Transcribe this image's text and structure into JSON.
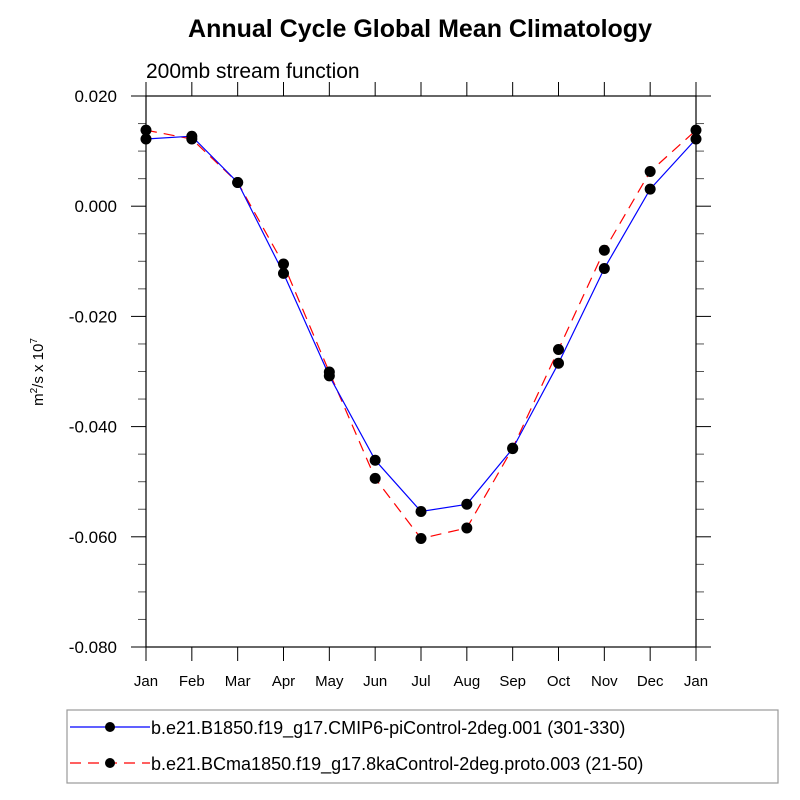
{
  "chart_data": {
    "type": "line",
    "title": "Annual Cycle Global Mean Climatology",
    "subtitle": "200mb stream function",
    "xlabel": "",
    "ylabel": {
      "base": "m",
      "sup1": "2",
      "mid": "/s x 10",
      "sup2": "7"
    },
    "x": [
      "Jan",
      "Feb",
      "Mar",
      "Apr",
      "May",
      "Jun",
      "Jul",
      "Aug",
      "Sep",
      "Oct",
      "Nov",
      "Dec",
      "Jan"
    ],
    "ylim": [
      -0.08,
      0.02
    ],
    "yticks": [
      0.02,
      0.0,
      -0.02,
      -0.04,
      -0.06,
      -0.08
    ],
    "ytick_labels": [
      "0.020",
      "0.000",
      "-0.020",
      "-0.040",
      "-0.060",
      "-0.080"
    ],
    "y_minor_step": 0.005,
    "grid": false,
    "legend_position": "bottom",
    "series": [
      {
        "name": "b.e21.B1850.f19_g17.CMIP6-piControl-2deg.001 (301-330)",
        "color": "#0000ff",
        "line_style": "solid",
        "marker": "filled-circle",
        "values": [
          0.0122,
          0.0127,
          0.0043,
          -0.0122,
          -0.0308,
          -0.0461,
          -0.0554,
          -0.0541,
          -0.044,
          -0.0285,
          -0.0113,
          0.0031,
          0.0122
        ]
      },
      {
        "name": "b.e21.BCma1850.f19_g17.8kaControl-2deg.proto.003 (21-50)",
        "color": "#ff0000",
        "line_style": "dashed",
        "marker": "filled-circle",
        "values": [
          0.0138,
          0.0122,
          0.0043,
          -0.0105,
          -0.0301,
          -0.0494,
          -0.0603,
          -0.0584,
          -0.0439,
          -0.026,
          -0.008,
          0.0063,
          0.0138
        ]
      }
    ]
  }
}
